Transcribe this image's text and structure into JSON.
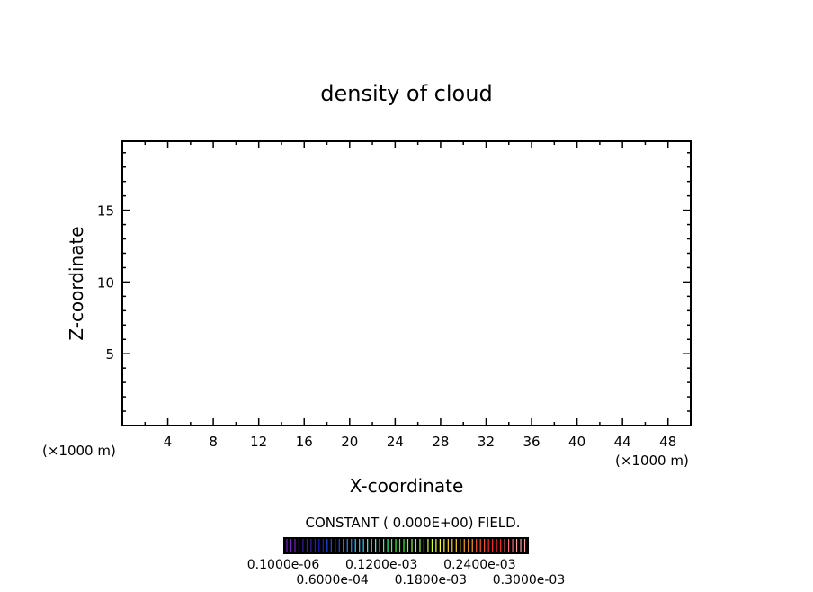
{
  "chart_data": {
    "type": "heatmap",
    "title": "density of cloud",
    "xlabel": "X-coordinate",
    "ylabel": "Z-coordinate",
    "x_unit_label_left": "(×1000 m)",
    "x_unit_label_right": "(×1000 m)",
    "xlim": [
      0,
      50
    ],
    "ylim": [
      0,
      19.8
    ],
    "x_ticks": [
      4,
      8,
      12,
      16,
      20,
      24,
      28,
      32,
      36,
      40,
      44,
      48
    ],
    "y_ticks": [
      5,
      10,
      15
    ],
    "grid": false,
    "field_note": "CONSTANT ( 0.000E+00) FIELD.",
    "colorbar": {
      "labels": [
        "0.1000e-06",
        "0.6000e-04",
        "0.1200e-03",
        "0.1800e-03",
        "0.2400e-03",
        "0.3000e-03"
      ],
      "colors": [
        "#7a1fc8",
        "#3a1aa8",
        "#1a1ae0",
        "#1a4af0",
        "#2a8aff",
        "#2ad0ff",
        "#2affe0",
        "#2aff8a",
        "#3aff2a",
        "#8aff2a",
        "#d0ff2a",
        "#ffff2a",
        "#ffd02a",
        "#ff9a2a",
        "#ff5a2a",
        "#ff2a2a",
        "#ff6a7a",
        "#ffa0a0"
      ]
    },
    "values": []
  }
}
